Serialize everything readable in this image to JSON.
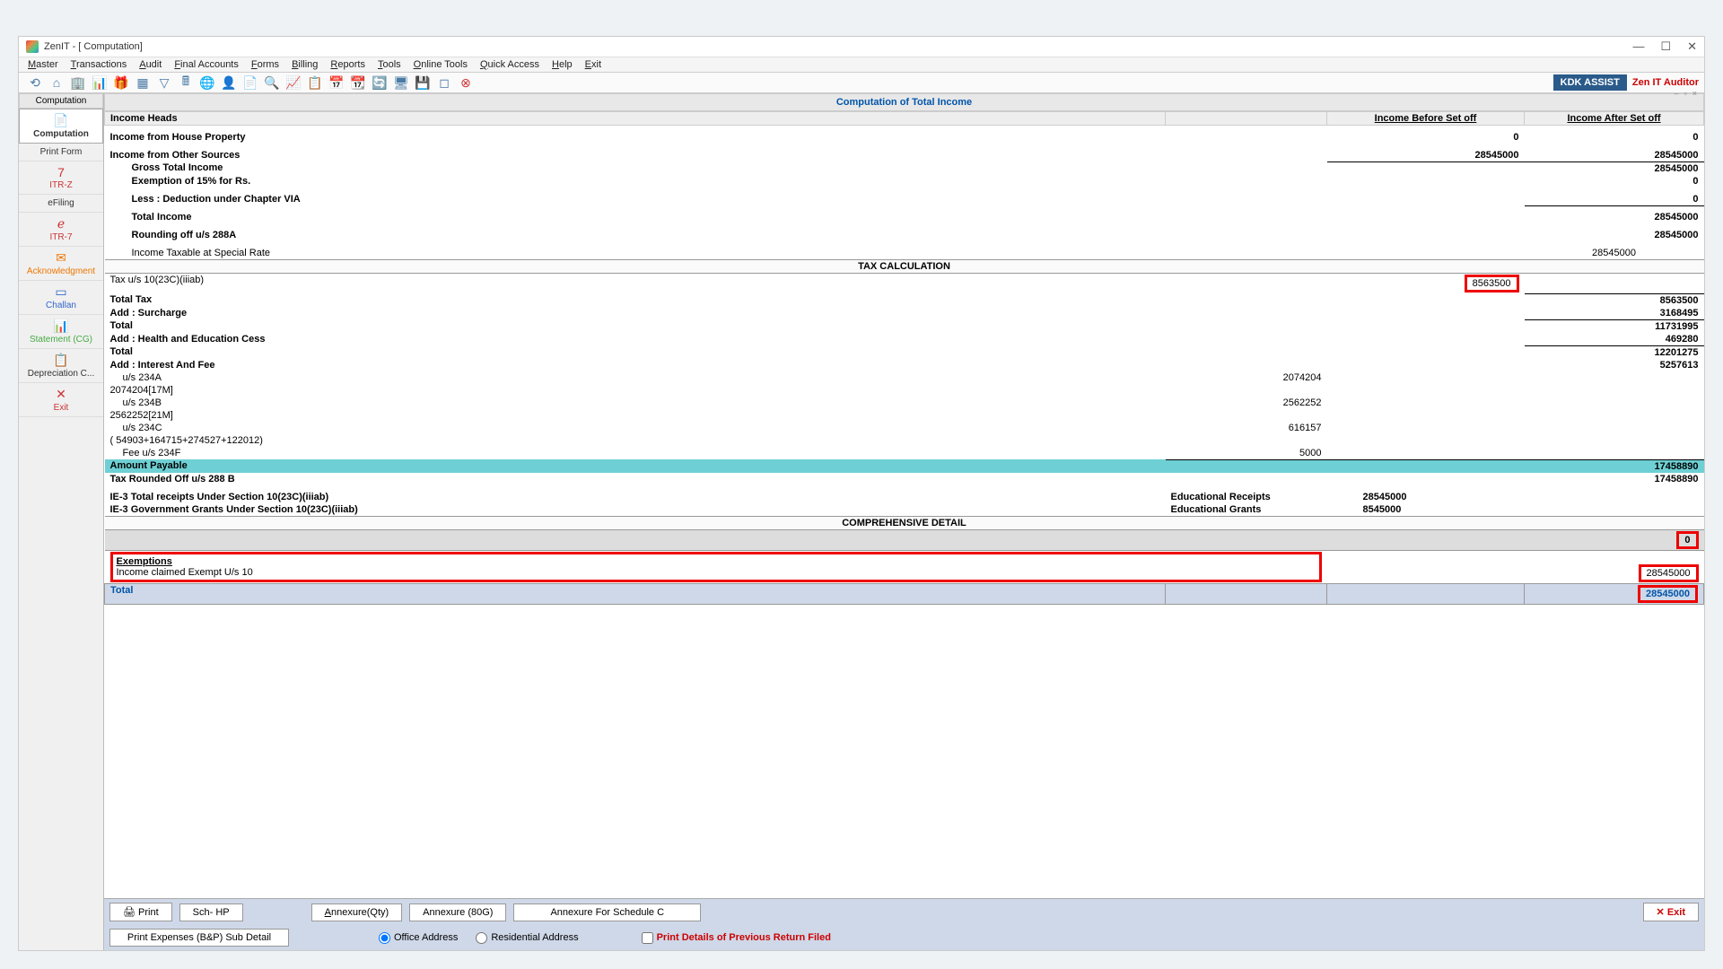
{
  "window": {
    "title": "ZenIT - [ Computation]"
  },
  "menu": [
    "Master",
    "Transactions",
    "Audit",
    "Final Accounts",
    "Forms",
    "Billing",
    "Reports",
    "Tools",
    "Online Tools",
    "Quick Access",
    "Help",
    "Exit"
  ],
  "brand": {
    "assist": "KDK ASSIST",
    "auditor": "Zen IT Auditor"
  },
  "sidebar": {
    "header": "Computation",
    "items": [
      {
        "label": "Computation",
        "ico": "📄",
        "cls": "active"
      },
      {
        "label": "Print Form",
        "ico": "",
        "cls": ""
      },
      {
        "label": "ITR-Z",
        "ico": "7",
        "cls": "ico-red"
      },
      {
        "label": "eFiling",
        "ico": "",
        "cls": ""
      },
      {
        "label": "ITR-7",
        "ico": "ℯ",
        "cls": "ico-red"
      },
      {
        "label": "Acknowledgment",
        "ico": "✉",
        "cls": "ico-orange"
      },
      {
        "label": "Challan",
        "ico": "▭",
        "cls": "ico-blue"
      },
      {
        "label": "Statement (CG)",
        "ico": "📊",
        "cls": "ico-green"
      },
      {
        "label": "Depreciation C...",
        "ico": "📋",
        "cls": ""
      },
      {
        "label": "Exit",
        "ico": "✕",
        "cls": "ico-red"
      }
    ]
  },
  "title": "Computation of Total Income",
  "headers": {
    "heads": "Income Heads",
    "before": "Income Before Set off",
    "after": "Income After Set off"
  },
  "rows": {
    "house_prop": {
      "label": "Income from House Property",
      "before": "0",
      "after": "0"
    },
    "other_src": {
      "label": "Income from Other Sources",
      "before": "28545000",
      "after": "28545000"
    },
    "gross": {
      "label": "Gross Total Income",
      "after": "28545000"
    },
    "exempt15": {
      "label": "Exemption of 15% for Rs.",
      "after": "0"
    },
    "less_via": {
      "label": "Less : Deduction under Chapter VIA",
      "after": "0"
    },
    "total_income": {
      "label": "Total Income",
      "after": "28545000"
    },
    "round288a": {
      "label": "Rounding off u/s 288A",
      "after": "28545000"
    },
    "special_rate": {
      "label": "Income Taxable at Special Rate",
      "val": "28545000"
    },
    "tax_calc_hdr": "TAX CALCULATION",
    "tax_10_23c": {
      "label": "Tax u/s 10(23C)(iiiab)",
      "val": "8563500"
    },
    "total_tax": {
      "label": "Total Tax",
      "after": "8563500"
    },
    "surcharge": {
      "label": "Add : Surcharge",
      "after": "3168495"
    },
    "total1": {
      "label": "Total",
      "after": "11731995"
    },
    "cess": {
      "label": "Add : Health and Education Cess",
      "after": "469280"
    },
    "total2": {
      "label": "Total",
      "after": "12201275"
    },
    "int_fee": {
      "label": "Add : Interest And Fee",
      "after": "5257613"
    },
    "u234a": {
      "label": "u/s 234A",
      "val": "2074204",
      "note": "2074204[17M]"
    },
    "u234b": {
      "label": "u/s 234B",
      "val": "2562252",
      "note": "2562252[21M]"
    },
    "u234c": {
      "label": "u/s 234C",
      "val": "616157",
      "note": "( 54903+164715+274527+122012)"
    },
    "u234f": {
      "label": "Fee u/s 234F",
      "val": "5000"
    },
    "payable": {
      "label": "Amount Payable",
      "after": "17458890"
    },
    "round288b": {
      "label": "Tax Rounded Off u/s 288 B",
      "after": "17458890"
    },
    "ie3_total": {
      "label": "IE-3 Total receipts Under Section 10(23C)(iiiab)",
      "desc": "Educational Receipts",
      "val": "28545000"
    },
    "ie3_gov": {
      "label": "IE-3 Government Grants Under Section 10(23C)(iiiab)",
      "desc": "Educational Grants",
      "val": "8545000"
    },
    "comp_detail": "COMPREHENSIVE DETAIL",
    "comp_val": "0",
    "exemptions_hdr": "Exemptions",
    "exempt_u10": {
      "label": "Income claimed Exempt U/s 10",
      "val": "28545000"
    },
    "exempt_total": {
      "label": "Total",
      "val": "28545000"
    }
  },
  "bottom": {
    "print": "Print",
    "sch_hp": "Sch- HP",
    "ann_qty": "Annexure(Qty)",
    "ann_80g": "Annexure (80G)",
    "ann_schc": "Annexure For Schedule C",
    "exit": "Exit",
    "print_exp": "Print Expenses (B&P) Sub Detail",
    "office": "Office Address",
    "res": "Residential Address",
    "prev": "Print Details of Previous Return Filed"
  }
}
